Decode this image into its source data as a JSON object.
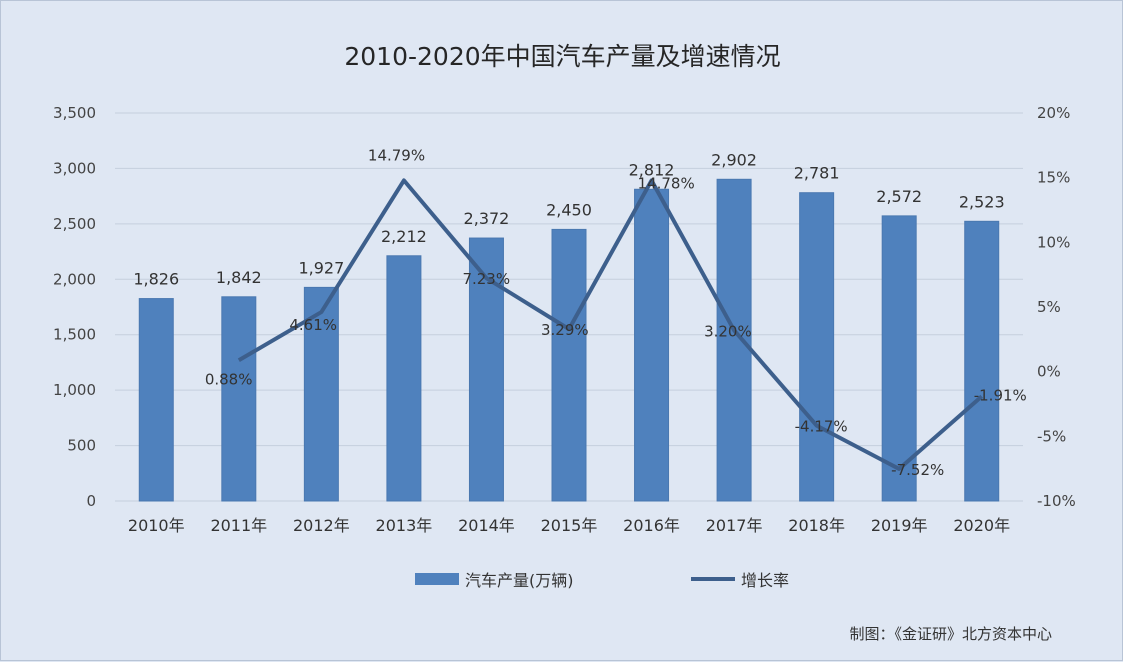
{
  "chart_title": "2010-2020年中国汽车产量及增速情况",
  "source_note": "制图：《金证研》北方资本中心",
  "legend": {
    "bar_label": "汽车产量(万辆)",
    "line_label": "增长率"
  },
  "colors": {
    "bar": "#4f81bd",
    "line": "#3d5f8c",
    "grid": "#c5cfdd",
    "background": "#dfe7f3"
  },
  "chart_data": {
    "type": "bar",
    "title": "2010-2020年中国汽车产量及增速情况",
    "categories": [
      "2010年",
      "2011年",
      "2012年",
      "2013年",
      "2014年",
      "2015年",
      "2016年",
      "2017年",
      "2018年",
      "2019年",
      "2020年"
    ],
    "series": [
      {
        "name": "汽车产量(万辆)",
        "type": "bar",
        "axis": "left",
        "values": [
          1826,
          1842,
          1927,
          2212,
          2372,
          2450,
          2812,
          2902,
          2781,
          2572,
          2523
        ],
        "labels": [
          "1,826",
          "1,842",
          "1,927",
          "2,212",
          "2,372",
          "2,450",
          "2,812",
          "2,902",
          "2,781",
          "2,572",
          "2,523"
        ]
      },
      {
        "name": "增长率",
        "type": "line",
        "axis": "right",
        "x": [
          "2011年",
          "2012年",
          "2013年",
          "2014年",
          "2015年",
          "2016年",
          "2017年",
          "2018年",
          "2019年",
          "2020年"
        ],
        "values": [
          0.88,
          4.61,
          14.79,
          7.23,
          3.29,
          14.78,
          3.2,
          -4.17,
          -7.52,
          -1.91
        ],
        "labels": [
          "0.88%",
          "4.61%",
          "14.79%",
          "7.23%",
          "3.29%",
          "14.78%",
          "3.20%",
          "-4.17%",
          "-7.52%",
          "-1.91%"
        ]
      }
    ],
    "y_left": {
      "range": [
        0,
        3500
      ],
      "ticks": [
        0,
        500,
        1000,
        1500,
        2000,
        2500,
        3000,
        3500
      ],
      "tick_labels": [
        "0",
        "500",
        "1,000",
        "1,500",
        "2,000",
        "2,500",
        "3,000",
        "3,500"
      ]
    },
    "y_right": {
      "range": [
        -10,
        20
      ],
      "ticks": [
        -10,
        -5,
        0,
        5,
        10,
        15,
        20
      ],
      "tick_labels": [
        "-10%",
        "-5%",
        "0%",
        "5%",
        "10%",
        "15%",
        "20%"
      ]
    },
    "grid": true,
    "legend_position": "bottom"
  }
}
